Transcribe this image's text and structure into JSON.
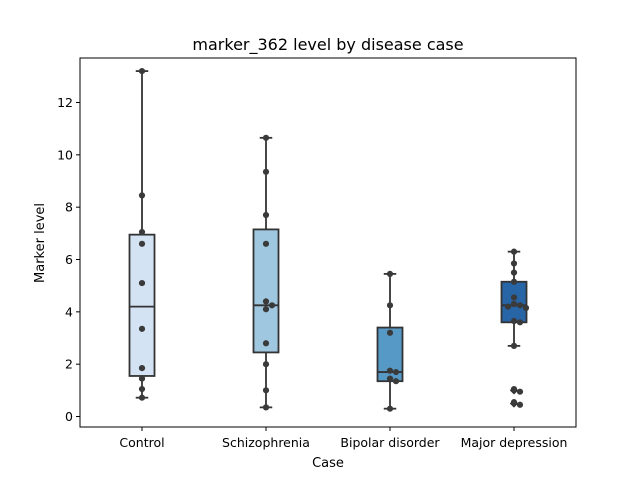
{
  "chart_data": {
    "type": "box",
    "title": "marker_362 level by disease case",
    "xlabel": "Case",
    "ylabel": "Marker level",
    "ylim": [
      -0.4,
      13.7
    ],
    "yticks": [
      0,
      2,
      4,
      6,
      8,
      10,
      12
    ],
    "grid": false,
    "legend": "none",
    "categories": [
      "Control",
      "Schizophrenia",
      "Bipolar disorder",
      "Major depression"
    ],
    "box_colors": [
      "#d4e3f3",
      "#9fc7df",
      "#5699c7",
      "#2865a6"
    ],
    "edge_color": "#333333",
    "point_color": "#3a3a3a",
    "boxes": [
      {
        "whisker_low": 0.72,
        "q1": 1.55,
        "median": 4.2,
        "q3": 6.95,
        "whisker_high": 13.2
      },
      {
        "whisker_low": 0.35,
        "q1": 2.45,
        "median": 4.25,
        "q3": 7.15,
        "whisker_high": 10.65
      },
      {
        "whisker_low": 0.3,
        "q1": 1.35,
        "median": 1.7,
        "q3": 3.4,
        "whisker_high": 5.45
      },
      {
        "whisker_low": 2.7,
        "q1": 3.6,
        "median": 4.25,
        "q3": 5.15,
        "whisker_high": 6.3
      }
    ],
    "points": [
      [
        13.2,
        8.45,
        7.05,
        6.6,
        5.1,
        3.35,
        1.85,
        1.45,
        1.05,
        0.72
      ],
      [
        10.65,
        9.35,
        7.7,
        6.6,
        4.4,
        4.25,
        4.1,
        2.8,
        2.0,
        1.0,
        0.35
      ],
      [
        5.45,
        4.25,
        3.2,
        1.75,
        1.7,
        1.45,
        1.35,
        0.3
      ],
      [
        6.3,
        5.85,
        5.5,
        5.15,
        4.55,
        4.3,
        4.25,
        4.2,
        4.15,
        3.65,
        3.6,
        2.7,
        1.05,
        0.95,
        0.55,
        0.45
      ]
    ],
    "outliers": [
      [],
      [],
      [],
      [
        1.0,
        0.5
      ]
    ]
  }
}
